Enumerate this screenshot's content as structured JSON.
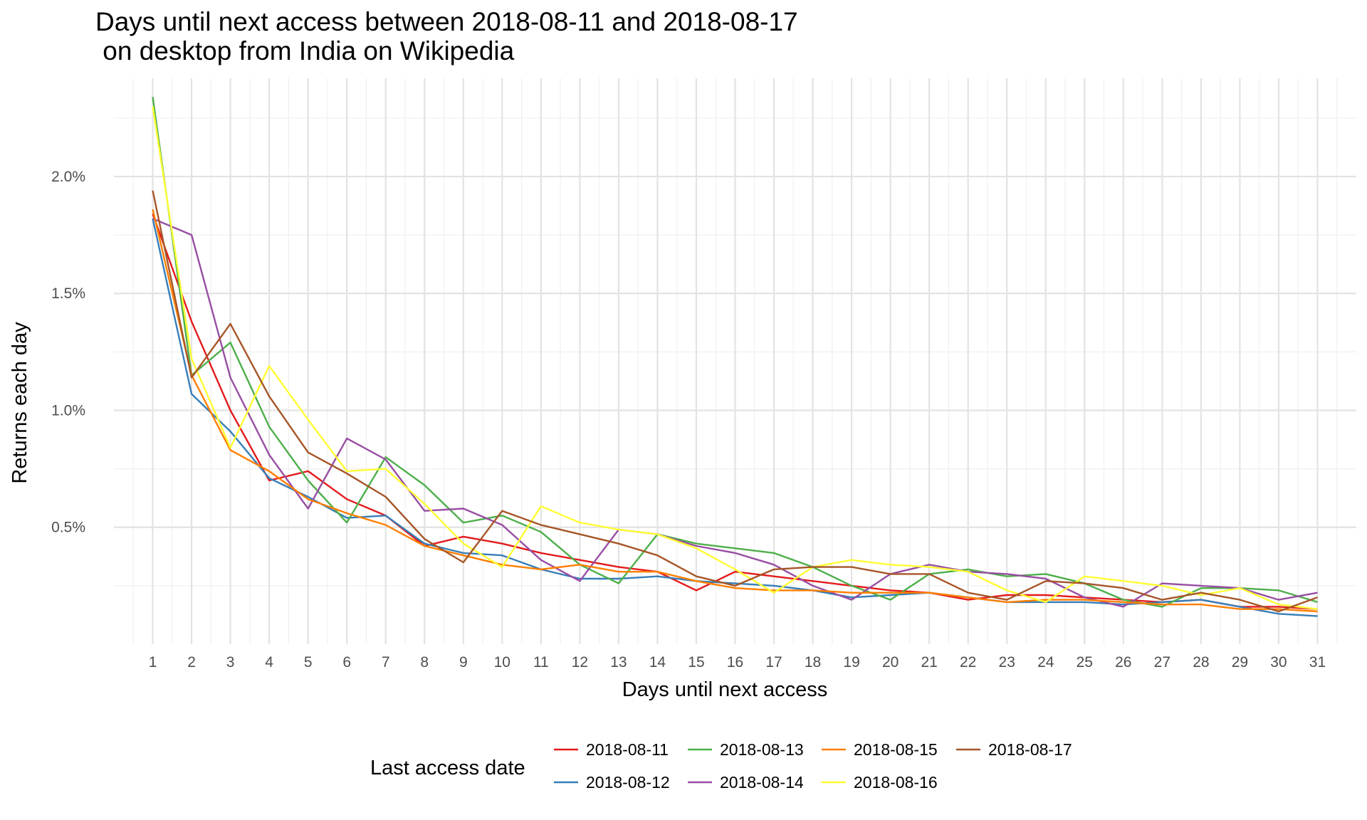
{
  "chart_data": {
    "type": "line",
    "title": [
      "Days until next access between 2018-08-11 and 2018-08-17",
      " on desktop from India on Wikipedia"
    ],
    "xlabel": "Days until next access",
    "ylabel": "Returns each day",
    "x": [
      1,
      2,
      3,
      4,
      5,
      6,
      7,
      8,
      9,
      10,
      11,
      12,
      13,
      14,
      15,
      16,
      17,
      18,
      19,
      20,
      21,
      22,
      23,
      24,
      25,
      26,
      27,
      28,
      29,
      30,
      31
    ],
    "xlim": [
      0,
      32
    ],
    "ylim": [
      0,
      2.42
    ],
    "y_ticks": [
      0.5,
      1.0,
      1.5,
      2.0
    ],
    "y_tick_labels": [
      "0.5%",
      "1.0%",
      "1.5%",
      "2.0%"
    ],
    "y_minor_ticks": [
      0.25,
      0.75,
      1.25,
      1.75,
      2.25
    ],
    "grid": true,
    "legend": {
      "title": "Last access date",
      "placement": "bottom",
      "entries": [
        "2018-08-11",
        "2018-08-13",
        "2018-08-15",
        "2018-08-17",
        "2018-08-12",
        "2018-08-14",
        "2018-08-16"
      ]
    },
    "series": [
      {
        "name": "2018-08-11",
        "color": "#e41a1c",
        "values": [
          1.84,
          1.38,
          1.0,
          0.7,
          0.74,
          0.62,
          0.55,
          0.42,
          0.46,
          0.43,
          0.39,
          0.36,
          0.33,
          0.31,
          0.23,
          0.31,
          0.29,
          0.27,
          0.25,
          0.23,
          0.22,
          0.19,
          0.21,
          0.21,
          0.2,
          0.19,
          0.18,
          0.19,
          0.16,
          0.16,
          0.15
        ]
      },
      {
        "name": "2018-08-12",
        "color": "#377eb8",
        "values": [
          1.82,
          1.07,
          0.91,
          0.71,
          0.63,
          0.54,
          0.55,
          0.43,
          0.39,
          0.38,
          0.32,
          0.28,
          0.28,
          0.29,
          0.27,
          0.26,
          0.25,
          0.23,
          0.2,
          0.21,
          0.22,
          0.2,
          0.18,
          0.18,
          0.18,
          0.17,
          0.18,
          0.19,
          0.16,
          0.13,
          0.12
        ]
      },
      {
        "name": "2018-08-13",
        "color": "#4daf4a",
        "values": [
          2.34,
          1.15,
          1.29,
          0.93,
          0.7,
          0.52,
          0.8,
          0.68,
          0.52,
          0.55,
          0.48,
          0.34,
          0.26,
          0.47,
          0.43,
          0.41,
          0.39,
          0.33,
          0.25,
          0.19,
          0.3,
          0.32,
          0.29,
          0.3,
          0.26,
          0.19,
          0.16,
          0.24,
          0.24,
          0.23,
          0.18
        ]
      },
      {
        "name": "2018-08-14",
        "color": "#984ea3",
        "values": [
          1.82,
          1.75,
          1.14,
          0.81,
          0.58,
          0.88,
          0.79,
          0.57,
          0.58,
          0.51,
          0.36,
          0.27,
          0.49,
          0.47,
          0.42,
          0.39,
          0.34,
          0.25,
          0.19,
          0.3,
          0.34,
          0.31,
          0.3,
          0.28,
          0.2,
          0.16,
          0.26,
          0.25,
          0.24,
          0.19,
          0.22
        ]
      },
      {
        "name": "2018-08-15",
        "color": "#ff7f00",
        "values": [
          1.86,
          1.15,
          0.83,
          0.74,
          0.62,
          0.56,
          0.51,
          0.42,
          0.38,
          0.34,
          0.32,
          0.34,
          0.31,
          0.31,
          0.27,
          0.24,
          0.23,
          0.23,
          0.22,
          0.22,
          0.22,
          0.2,
          0.18,
          0.19,
          0.19,
          0.18,
          0.17,
          0.17,
          0.15,
          0.15,
          0.14
        ]
      },
      {
        "name": "2018-08-16",
        "color": "#ffff33",
        "values": [
          2.3,
          1.22,
          0.84,
          1.19,
          0.96,
          0.74,
          0.75,
          0.6,
          0.43,
          0.33,
          0.59,
          0.52,
          0.49,
          0.47,
          0.41,
          0.32,
          0.22,
          0.33,
          0.36,
          0.34,
          0.33,
          0.31,
          0.23,
          0.18,
          0.29,
          0.27,
          0.25,
          0.21,
          0.24,
          0.17,
          0.15
        ]
      },
      {
        "name": "2018-08-17",
        "color": "#a65628",
        "values": [
          1.94,
          1.14,
          1.37,
          1.06,
          0.82,
          0.73,
          0.63,
          0.45,
          0.35,
          0.57,
          0.51,
          0.47,
          0.43,
          0.38,
          0.29,
          0.25,
          0.32,
          0.33,
          0.33,
          0.3,
          0.3,
          0.22,
          0.19,
          0.27,
          0.26,
          0.24,
          0.19,
          0.22,
          0.19,
          0.14,
          0.2
        ]
      }
    ]
  }
}
